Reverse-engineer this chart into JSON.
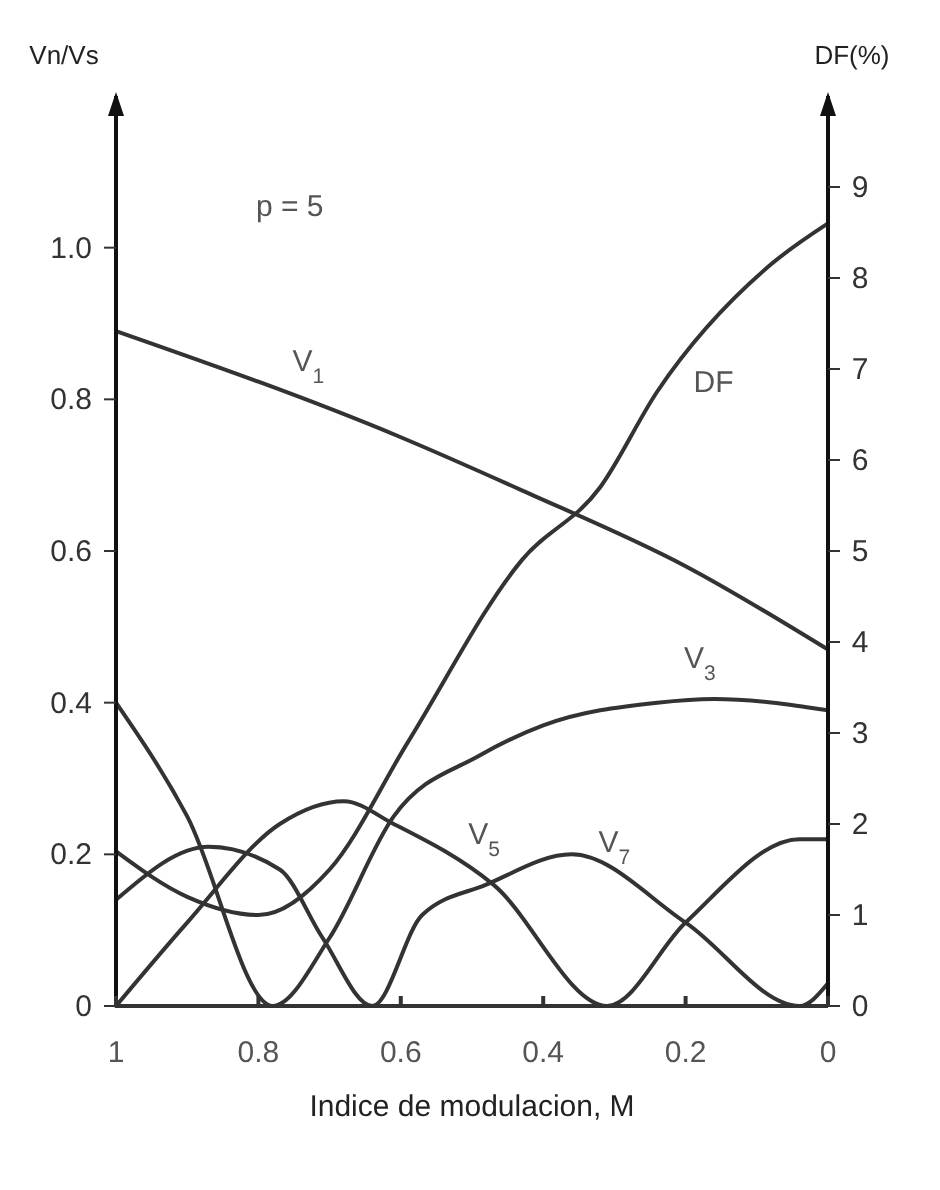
{
  "chart_data": {
    "type": "line",
    "xlabel": "Indice de modulacion, M",
    "ylabel": "Vn/Vs",
    "y2label": "DF(%)",
    "annotations": [
      "p = 5"
    ],
    "xlim": [
      1,
      0
    ],
    "xticks": [
      1,
      0.8,
      0.6,
      0.4,
      0.2,
      0
    ],
    "ylim": [
      0,
      1.2
    ],
    "yticks": [
      0,
      0.2,
      0.4,
      0.6,
      {
        "value": 0.8,
        "label": "0.8"
      },
      {
        "value": 1,
        "label": "1.0"
      }
    ],
    "y2lim": [
      0,
      10
    ],
    "y2ticks": [
      0,
      1,
      2,
      3,
      4,
      5,
      6,
      7,
      8,
      9
    ],
    "grid": false,
    "series": [
      {
        "name": "V$_{1}$",
        "color": "#333333",
        "x": [
          1,
          0.6,
          0.43,
          0.2,
          0
        ],
        "values": [
          0.89,
          0.75,
          0.68,
          0.58,
          0.47
        ]
      },
      {
        "name": "V$_{3}$",
        "color": "#333333",
        "x": [
          1,
          0.9,
          0.78,
          0.7,
          0.61,
          0.49,
          0.4,
          0.24,
          0.16,
          0
        ],
        "values": [
          0.4,
          0.25,
          0,
          0.09,
          0.25,
          0.33,
          0.37,
          0.4,
          0.405,
          0.39
        ]
      },
      {
        "name": "V$_{5}$",
        "color": "#333333",
        "x": [
          1,
          0.9,
          0.77,
          0.68,
          0.61,
          0.47,
          0.31,
          0.2,
          0.04,
          0
        ],
        "values": [
          0,
          0.11,
          0.24,
          0.27,
          0.24,
          0.16,
          0,
          0.11,
          0.22,
          0.22
        ]
      },
      {
        "name": "V$_{7}$",
        "color": "#333333",
        "x": [
          1,
          0.87,
          0.77,
          0.71,
          0.64,
          0.57,
          0.48,
          0.36,
          0.2,
          0.04,
          0
        ],
        "values": [
          0.14,
          0.21,
          0.18,
          0.09,
          0,
          0.12,
          0.16,
          0.2,
          0.11,
          0,
          0.03
        ]
      },
      {
        "name": "DF",
        "color": "#333333",
        "axis": "y2",
        "x": [
          1,
          0.9,
          0.8,
          0.7,
          0.59,
          0.43,
          0.32,
          0.24,
          0.08,
          0
        ],
        "values": [
          1.7,
          1.2,
          1,
          1.5,
          2.9,
          4.9,
          5.7,
          6.75,
          8.15,
          8.6
        ]
      }
    ]
  }
}
